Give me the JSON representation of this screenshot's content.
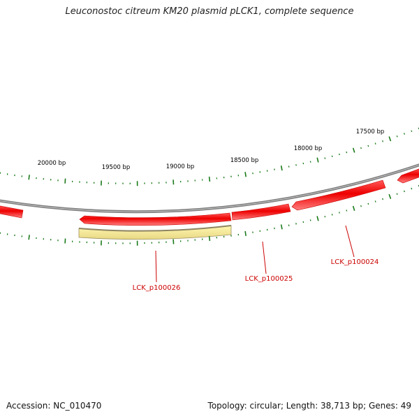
{
  "title": "Leuconostoc citreum KM20 plasmid pLCK1, complete sequence",
  "footer": {
    "accession": "Accession: NC_010470",
    "summary": "Topology: circular; Length: 38,713 bp; Genes: 49"
  },
  "colors": {
    "backbone": "#8a8a8a",
    "gene_fill": "#ee0000",
    "gene_highlight": "#ff6666",
    "selected_fill": "#f0e690",
    "tick": "#1a7a1a",
    "label_text": "#cc0000",
    "scale_text": "#000000"
  },
  "scale_labels": [
    "20000 bp",
    "19500 bp",
    "19000 bp",
    "18500 bp",
    "18000 bp",
    "17500 bp"
  ],
  "genes": [
    {
      "label": "LCK_p100024"
    },
    {
      "label": "LCK_p100025"
    },
    {
      "label": "LCK_p100026"
    }
  ]
}
